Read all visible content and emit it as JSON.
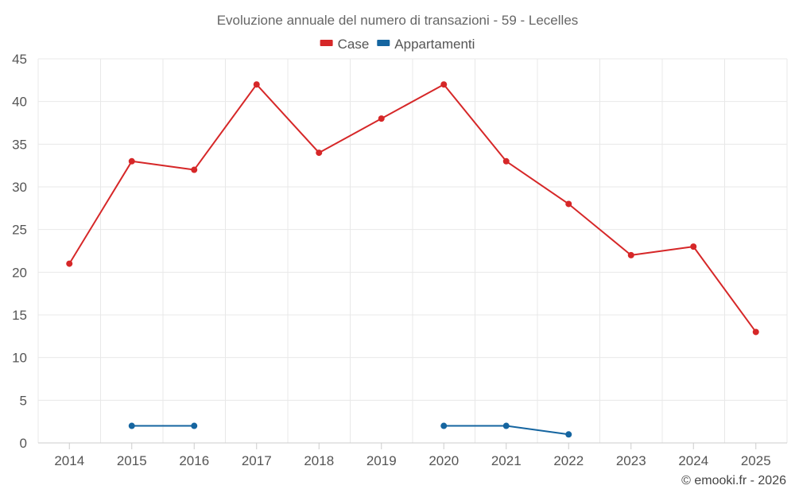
{
  "chart_data": {
    "type": "line",
    "title": "Evoluzione annuale del numero di transazioni - 59 - Lecelles",
    "xlabel": "",
    "ylabel": "",
    "categories": [
      "2014",
      "2015",
      "2016",
      "2017",
      "2018",
      "2019",
      "2020",
      "2021",
      "2022",
      "2023",
      "2024",
      "2025"
    ],
    "ylim": [
      0,
      45
    ],
    "yticks": [
      0,
      5,
      10,
      15,
      20,
      25,
      30,
      35,
      40,
      45
    ],
    "grid": true,
    "legend_position": "top-center",
    "series": [
      {
        "name": "Case",
        "color": "#d62728",
        "values": [
          21,
          33,
          32,
          42,
          34,
          38,
          42,
          33,
          28,
          22,
          23,
          13
        ]
      },
      {
        "name": "Appartamenti",
        "color": "#1565a0",
        "values": [
          null,
          2,
          2,
          null,
          null,
          null,
          2,
          2,
          1,
          null,
          null,
          null
        ]
      }
    ]
  },
  "credit": "© emooki.fr - 2026"
}
